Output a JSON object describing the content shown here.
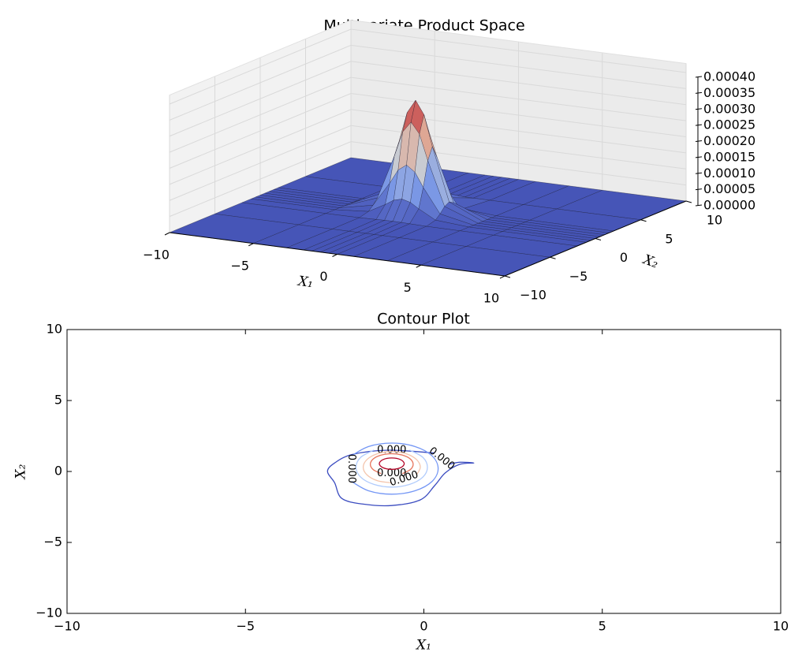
{
  "chart_data": [
    {
      "type": "surface",
      "title": "Multivariate Product Space",
      "xlabel": "X₁",
      "ylabel": "X₂",
      "colormap": "coolwarm",
      "xlim": [
        -10,
        10
      ],
      "ylim": [
        -10,
        10
      ],
      "zlim": [
        0,
        0.0004
      ],
      "xticks": [
        {
          "value": -10,
          "label": "−10"
        },
        {
          "value": -5,
          "label": "−5"
        },
        0,
        5,
        10
      ],
      "yticks": [
        {
          "value": -10,
          "label": "−10"
        },
        {
          "value": -5,
          "label": "−5"
        },
        0,
        5,
        10
      ],
      "zticks": [
        {
          "value": 0,
          "label": "0.00000"
        },
        {
          "value": 5e-05,
          "label": "0.00005"
        },
        {
          "value": 0.0001,
          "label": "0.00010"
        },
        {
          "value": 0.00015,
          "label": "0.00015"
        },
        {
          "value": 0.0002,
          "label": "0.00020"
        },
        {
          "value": 0.00025,
          "label": "0.00025"
        },
        {
          "value": 0.0003,
          "label": "0.00030"
        },
        {
          "value": 0.00035,
          "label": "0.00035"
        },
        {
          "value": 0.0004,
          "label": "0.00040"
        }
      ],
      "x": [
        -10,
        -5,
        -3,
        -2,
        -1.5,
        -1,
        -0.5,
        0,
        1,
        3,
        5,
        10
      ],
      "y": [
        -10,
        -5,
        -2,
        -1,
        -0.5,
        0,
        0.5,
        1,
        1.5,
        2,
        5,
        10
      ],
      "z": [
        [
          0,
          0,
          0,
          0,
          0,
          0,
          0,
          0,
          0,
          0,
          0,
          0
        ],
        [
          0,
          0,
          0,
          0,
          0,
          0,
          0,
          0,
          0,
          0,
          0,
          0
        ],
        [
          0,
          8.9e-10,
          3.6e-07,
          1.61e-06,
          2.35e-06,
          2.66e-06,
          2.35e-06,
          1.61e-06,
          3.6e-07,
          8.9e-10,
          0,
          0
        ],
        [
          0,
          2e-08,
          8.13e-06,
          3.65e-05,
          5.31e-05,
          6.02e-05,
          5.31e-05,
          3.65e-05,
          8.13e-06,
          2e-08,
          0,
          0
        ],
        [
          0,
          5.4e-08,
          2.16e-05,
          9.73e-05,
          0.0001414,
          0.0001603,
          0.0001414,
          9.73e-05,
          2.16e-05,
          5.4e-08,
          0,
          0
        ],
        [
          0,
          9.6e-08,
          3.89e-05,
          0.0001748,
          0.000254,
          0.000288,
          0.000254,
          0.0001748,
          3.89e-05,
          9.6e-08,
          0,
          0
        ],
        [
          0,
          1.17e-07,
          4.73e-05,
          0.0002125,
          0.0003087,
          0.00035,
          0.0003087,
          0.0002125,
          4.73e-05,
          1.17e-07,
          0,
          0
        ],
        [
          0,
          9.6e-08,
          3.89e-05,
          0.0001748,
          0.000254,
          0.000288,
          0.000254,
          0.0001748,
          3.89e-05,
          9.6e-08,
          0,
          0
        ],
        [
          0,
          5.4e-08,
          2.16e-05,
          9.73e-05,
          0.0001414,
          0.0001603,
          0.0001414,
          9.73e-05,
          2.16e-05,
          5.4e-08,
          0,
          0
        ],
        [
          0,
          2e-08,
          8.13e-06,
          3.65e-05,
          5.31e-05,
          6.02e-05,
          5.31e-05,
          3.65e-05,
          8.13e-06,
          2e-08,
          0,
          0
        ],
        [
          0,
          0,
          0,
          0,
          0,
          0,
          0,
          0,
          0,
          0,
          0,
          0
        ],
        [
          0,
          0,
          0,
          0,
          0,
          0,
          0,
          0,
          0,
          0,
          0,
          0
        ]
      ]
    },
    {
      "type": "contour",
      "title": "Contour Plot",
      "xlabel": "X₁",
      "ylabel": "X₂",
      "xlim": [
        -10,
        10
      ],
      "ylim": [
        -10,
        10
      ],
      "xticks": [
        {
          "value": -10,
          "label": "−10"
        },
        {
          "value": -5,
          "label": "−5"
        },
        0,
        5,
        10
      ],
      "yticks": [
        {
          "value": -10,
          "label": "−10"
        },
        {
          "value": -5,
          "label": "−5"
        },
        0,
        5,
        10
      ],
      "series": [
        {
          "color": "#3b4cc0",
          "label": "0.000",
          "x": [
            0.3,
            -1.0,
            -2.0,
            -2.5,
            -2.7,
            -2.5,
            -2.3,
            -1.7,
            -0.9,
            -0.1,
            0.3,
            0.6,
            1.0,
            1.4,
            1.0,
            0.7
          ],
          "y": [
            1.3,
            1.5,
            1.2,
            0.6,
            0.0,
            -0.8,
            -1.9,
            -2.3,
            -2.4,
            -2.0,
            -1.0,
            -0.1,
            0.5,
            0.6,
            0.65,
            0.5
          ]
        },
        {
          "color": "#7396f5",
          "label": "0.000",
          "x": [
            -2.03,
            -1.55,
            -0.9,
            -0.25,
            0.23,
            0.4,
            0.23,
            -0.25,
            -0.9,
            -1.55,
            -2.03
          ],
          "y": [
            -0.7,
            -1.36,
            -1.6,
            -1.36,
            -0.7,
            0.2,
            1.1,
            1.76,
            2.0,
            1.76,
            1.1
          ]
        },
        {
          "color": "#b0cbfc",
          "label": "0.000",
          "x": [
            -1.4,
            -1.77,
            -1.9,
            -1.77,
            -1.4,
            -0.9,
            -0.4,
            -0.03,
            0.1,
            -0.03,
            -0.4
          ],
          "y": [
            1.51,
            1.0,
            0.3,
            -0.4,
            -0.91,
            -1.1,
            -0.91,
            -0.4,
            0.3,
            1.0,
            1.51
          ]
        },
        {
          "color": "#f4c5ad",
          "label": "0.000",
          "x": [
            -0.21,
            -0.1,
            -0.21,
            -0.5,
            -0.9,
            -1.3,
            -1.59,
            -1.7,
            -1.59,
            -1.3,
            -0.9
          ],
          "y": [
            -0.25,
            0.3,
            0.85,
            1.25,
            1.4,
            1.25,
            0.85,
            0.3,
            -0.25,
            -0.65,
            -0.8
          ]
        },
        {
          "color": "#e7745b",
          "label": "0.000",
          "x": [
            -0.6,
            -0.38,
            -0.3,
            -0.38,
            -0.6,
            -0.9,
            -1.2,
            -1.42,
            -1.5,
            -1.42,
            -1.2
          ],
          "y": [
            -0.15,
            0.13,
            0.5,
            0.88,
            1.15,
            1.25,
            1.15,
            0.88,
            0.5,
            0.13,
            -0.15
          ]
        },
        {
          "color": "#b40426",
          "closed": true,
          "x": [
            -0.55,
            -0.65,
            -0.9,
            -1.15,
            -1.25,
            -1.15,
            -0.9,
            -0.65
          ],
          "y": [
            0.55,
            0.83,
            0.95,
            0.83,
            0.55,
            0.27,
            0.15,
            0.27
          ]
        }
      ]
    }
  ]
}
